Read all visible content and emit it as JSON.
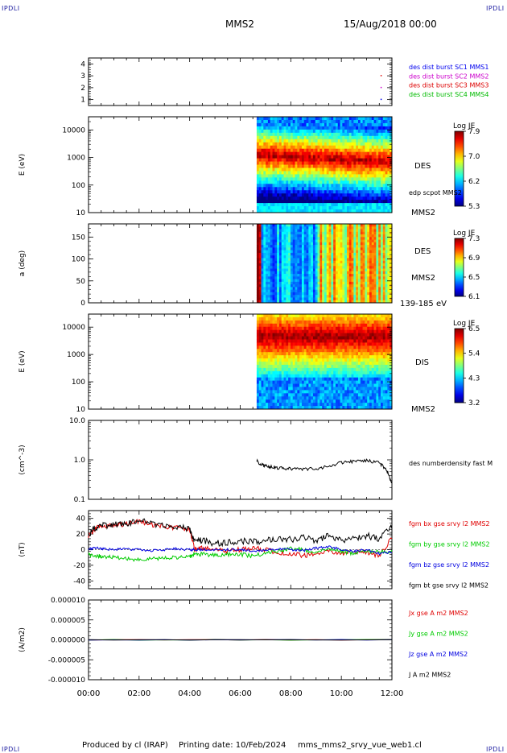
{
  "header": {
    "corner_label": "IPDLI",
    "spacecraft": "MMS2",
    "date_time": "15/Aug/2018 00:00"
  },
  "footer": {
    "produced_by": "Produced by cl (IRAP)",
    "printing_date": "Printing date: 10/Feb/2024",
    "filename": "mms_mms2_srvy_vue_web1.cl"
  },
  "colors": {
    "panel_bg": "#ffffff",
    "axis": "#000000",
    "bx": "#e00000",
    "by": "#00cc00",
    "bz": "#0000e0",
    "bt": "#000000",
    "sc1": "#0000ee",
    "sc2": "#cc00cc",
    "sc3": "#dd0000",
    "sc4": "#00bb00"
  },
  "chart_data": [
    {
      "type": "scatter",
      "panel": "burst",
      "ylim": [
        0.5,
        4.5
      ],
      "yticks": [
        "1",
        "2",
        "3",
        "4"
      ],
      "legend": [
        {
          "text": "des dist burst SC1 MMS1",
          "color": "#0000ee"
        },
        {
          "text": "des dist burst SC2 MMS2",
          "color": "#cc00cc"
        },
        {
          "text": "des dist burst SC3 MMS3",
          "color": "#dd0000"
        },
        {
          "text": "des dist burst SC4 MMS4",
          "color": "#00bb00"
        }
      ],
      "points": [
        {
          "x": 11.55,
          "y": 1
        },
        {
          "x": 11.55,
          "y": 2
        },
        {
          "x": 11.55,
          "y": 3
        }
      ]
    },
    {
      "type": "heatmap",
      "panel": "des_energy",
      "ylabel": "E (eV)",
      "yscale": "log",
      "ylim": [
        10,
        30000
      ],
      "yticks": [
        "10",
        "100",
        "1000",
        "10000"
      ],
      "data_start_hour": 6.65,
      "labels": [
        "DES",
        "edp scpot MMS2",
        "MMS2"
      ],
      "colorbar": {
        "title": "Log JE",
        "ticks": [
          "7.9",
          "7.0",
          "6.2",
          "5.3"
        ]
      }
    },
    {
      "type": "heatmap",
      "panel": "des_pitch",
      "ylabel": "a (deg)",
      "ylim": [
        0,
        180
      ],
      "yticks": [
        "0",
        "50",
        "100",
        "150"
      ],
      "data_start_hour": 6.65,
      "labels": [
        "DES",
        "MMS2",
        "139-185 eV"
      ],
      "colorbar": {
        "title": "Log JE",
        "ticks": [
          "7.3",
          "6.9",
          "6.5",
          "6.1"
        ]
      }
    },
    {
      "type": "heatmap",
      "panel": "dis_energy",
      "ylabel": "E (eV)",
      "yscale": "log",
      "ylim": [
        10,
        30000
      ],
      "yticks": [
        "10",
        "100",
        "1000",
        "10000"
      ],
      "data_start_hour": 6.65,
      "labels": [
        "DIS",
        "MMS2"
      ],
      "colorbar": {
        "title": "Log JE",
        "ticks": [
          "6.5",
          "5.4",
          "4.3",
          "3.2"
        ]
      }
    },
    {
      "type": "line",
      "panel": "density",
      "ylabel": "(cm^-3)",
      "yscale": "log",
      "ylim": [
        0.1,
        10
      ],
      "yticks": [
        "0.1",
        "1.0",
        "10.0"
      ],
      "series": [
        {
          "name": "des numberdensity fast M",
          "color": "#000000",
          "x": [
            6.65,
            6.8,
            7.0,
            7.3,
            7.6,
            8.0,
            8.5,
            9.0,
            9.5,
            10.0,
            10.5,
            11.0,
            11.5,
            11.8,
            12.0
          ],
          "y": [
            1.0,
            0.75,
            0.7,
            0.65,
            0.62,
            0.6,
            0.58,
            0.6,
            0.68,
            0.85,
            0.92,
            0.95,
            0.85,
            0.55,
            0.25
          ]
        }
      ]
    },
    {
      "type": "line",
      "panel": "bfield",
      "ylabel": "(nT)",
      "ylim": [
        -50,
        50
      ],
      "yticks": [
        "-40",
        "-20",
        "0",
        "20",
        "40"
      ],
      "x": [
        0.0,
        0.3,
        0.6,
        1.0,
        1.5,
        2.0,
        2.5,
        3.0,
        3.5,
        4.0,
        4.2,
        4.5,
        5.0,
        5.5,
        6.0,
        6.5,
        7.0,
        7.5,
        8.0,
        8.5,
        9.0,
        9.5,
        10.0,
        10.5,
        11.0,
        11.5,
        12.0
      ],
      "series": [
        {
          "name": "fgm bx gse srvy l2 MMS2",
          "color": "#e00000",
          "y": [
            18,
            28,
            30,
            31,
            33,
            36,
            32,
            30,
            28,
            26,
            0,
            2,
            0,
            -2,
            0,
            2,
            0,
            -4,
            -5,
            -8,
            -6,
            -2,
            -5,
            -3,
            -4,
            -8,
            15
          ]
        },
        {
          "name": "fgm by gse srvy l2 MMS2",
          "color": "#00cc00",
          "y": [
            -6,
            -8,
            -9,
            -10,
            -12,
            -13,
            -12,
            -11,
            -10,
            -9,
            -5,
            -6,
            -7,
            -6,
            -6,
            -8,
            -5,
            -2,
            2,
            0,
            -4,
            2,
            -2,
            -5,
            -2,
            -3,
            -2
          ]
        },
        {
          "name": "fgm bz gse srvy l2 MMS2",
          "color": "#0000e0",
          "y": [
            1,
            2,
            1,
            0,
            1,
            0,
            -1,
            0,
            1,
            0,
            0,
            0,
            0,
            0,
            0,
            -2,
            0,
            1,
            0,
            -1,
            2,
            4,
            0,
            -2,
            0,
            -5,
            -3
          ]
        },
        {
          "name": "fgm bt gse srvy l2 MMS2",
          "color": "#000000",
          "y": [
            19,
            29,
            31,
            32,
            34,
            37,
            33,
            31,
            29,
            27,
            10,
            12,
            8,
            9,
            11,
            10,
            12,
            14,
            13,
            16,
            10,
            18,
            12,
            15,
            18,
            14,
            30
          ]
        }
      ]
    },
    {
      "type": "line",
      "panel": "current",
      "ylabel": "(A/m2)",
      "ylim": [
        -1e-05,
        1e-05
      ],
      "yticks": [
        "-0.000010",
        "-0.000005",
        "0.000000",
        "0.000005",
        "0.000010"
      ],
      "series": [
        {
          "name": "Jx gse A m2 MMS2",
          "color": "#e00000",
          "x": [
            0,
            12
          ],
          "y": [
            0,
            0
          ]
        },
        {
          "name": "Jy gse A m2 MMS2",
          "color": "#00cc00",
          "x": [
            0,
            12
          ],
          "y": [
            0,
            0
          ]
        },
        {
          "name": "Jz gse A m2 MMS2",
          "color": "#0000e0",
          "x": [
            0,
            12
          ],
          "y": [
            0,
            0
          ]
        },
        {
          "name": "J A m2 MMS2",
          "color": "#000000",
          "x": [
            0,
            12
          ],
          "y": [
            0,
            0
          ]
        }
      ]
    }
  ],
  "x_axis": {
    "xlim": [
      0,
      12
    ],
    "ticks": [
      {
        "value": 0,
        "label": "00:00"
      },
      {
        "value": 2,
        "label": "02:00"
      },
      {
        "value": 4,
        "label": "04:00"
      },
      {
        "value": 6,
        "label": "06:00"
      },
      {
        "value": 8,
        "label": "08:00"
      },
      {
        "value": 10,
        "label": "10:00"
      },
      {
        "value": 12,
        "label": "12:00"
      }
    ]
  }
}
